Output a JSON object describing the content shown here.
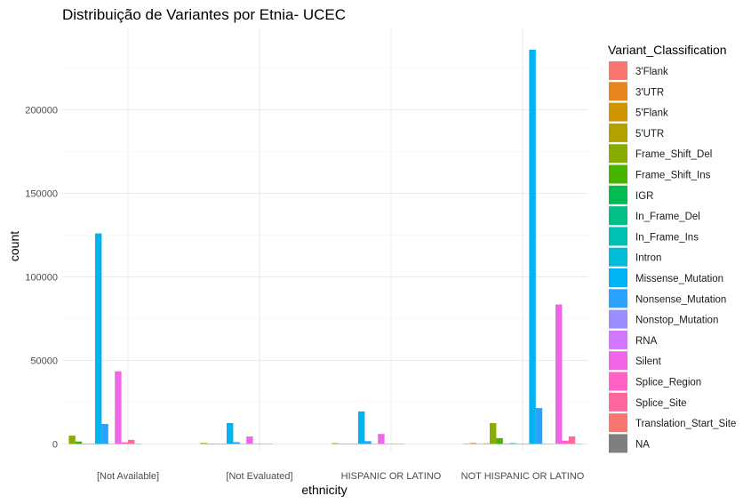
{
  "chart_data": {
    "type": "bar",
    "title": "Distribuição de Variantes por Etnia- UCEC",
    "xlabel": "ethnicity",
    "ylabel": "count",
    "ylim": [
      0,
      250000
    ],
    "yticks": [
      0,
      50000,
      100000,
      150000,
      200000
    ],
    "grid": true,
    "legend_position": "right",
    "legend_title": "Variant_Classification",
    "categories": [
      "[Not Available]",
      "[Not Evaluated]",
      "HISPANIC OR LATINO",
      "NOT HISPANIC OR LATINO"
    ],
    "series": [
      {
        "name": "3'Flank",
        "color": "#F8766D",
        "values": [
          0,
          0,
          0,
          300
        ]
      },
      {
        "name": "3'UTR",
        "color": "#E7851E",
        "values": [
          0,
          0,
          0,
          600
        ]
      },
      {
        "name": "5'Flank",
        "color": "#D09400",
        "values": [
          0,
          0,
          0,
          200
        ]
      },
      {
        "name": "5'UTR",
        "color": "#B2A100",
        "values": [
          0,
          0,
          0,
          400
        ]
      },
      {
        "name": "Frame_Shift_Del",
        "color": "#89AC00",
        "values": [
          5000,
          600,
          500,
          12500
        ]
      },
      {
        "name": "Frame_Shift_Ins",
        "color": "#45B500",
        "values": [
          1500,
          200,
          150,
          3500
        ]
      },
      {
        "name": "IGR",
        "color": "#00BC51",
        "values": [
          0,
          0,
          0,
          100
        ]
      },
      {
        "name": "In_Frame_Del",
        "color": "#00C087",
        "values": [
          200,
          50,
          40,
          500
        ]
      },
      {
        "name": "In_Frame_Ins",
        "color": "#00C0B2",
        "values": [
          50,
          10,
          10,
          100
        ]
      },
      {
        "name": "Intron",
        "color": "#00BCD6",
        "values": [
          0,
          0,
          0,
          200
        ]
      },
      {
        "name": "Missense_Mutation",
        "color": "#00B3F2",
        "values": [
          126000,
          12500,
          19500,
          236000
        ]
      },
      {
        "name": "Nonsense_Mutation",
        "color": "#29A3FF",
        "values": [
          12000,
          1100,
          1700,
          21500
        ]
      },
      {
        "name": "Nonstop_Mutation",
        "color": "#9C8DFF",
        "values": [
          100,
          20,
          20,
          200
        ]
      },
      {
        "name": "RNA",
        "color": "#D277FF",
        "values": [
          0,
          0,
          0,
          100
        ]
      },
      {
        "name": "Silent",
        "color": "#F166E8",
        "values": [
          43500,
          4500,
          6000,
          83500
        ]
      },
      {
        "name": "Splice_Region",
        "color": "#FF61C7",
        "values": [
          1000,
          100,
          150,
          2000
        ]
      },
      {
        "name": "Splice_Site",
        "color": "#FF689E",
        "values": [
          2500,
          300,
          250,
          4500
        ]
      },
      {
        "name": "Translation_Start_Site",
        "color": "#F8766D",
        "values": [
          100,
          10,
          10,
          200
        ]
      },
      {
        "name": "NA",
        "color": "#7F7F7F",
        "values": [
          0,
          0,
          0,
          0
        ]
      }
    ],
    "groups": [
      [
        "Frame_Shift_Del",
        "Frame_Shift_Ins",
        "In_Frame_Del",
        "In_Frame_Ins",
        "Missense_Mutation",
        "Nonsense_Mutation",
        "Nonstop_Mutation",
        "Silent",
        "Splice_Region",
        "Splice_Site",
        "Translation_Start_Site"
      ],
      [
        "Frame_Shift_Del",
        "Frame_Shift_Ins",
        "In_Frame_Del",
        "In_Frame_Ins",
        "Missense_Mutation",
        "Nonsense_Mutation",
        "Nonstop_Mutation",
        "Silent",
        "Splice_Region",
        "Splice_Site",
        "Translation_Start_Site"
      ],
      [
        "Frame_Shift_Del",
        "Frame_Shift_Ins",
        "In_Frame_Del",
        "In_Frame_Ins",
        "Missense_Mutation",
        "Nonsense_Mutation",
        "Nonstop_Mutation",
        "Silent",
        "Splice_Region",
        "Splice_Site",
        "Translation_Start_Site"
      ],
      [
        "3'Flank",
        "3'UTR",
        "5'Flank",
        "5'UTR",
        "Frame_Shift_Del",
        "Frame_Shift_Ins",
        "IGR",
        "In_Frame_Del",
        "In_Frame_Ins",
        "Intron",
        "Missense_Mutation",
        "Nonsense_Mutation",
        "Nonstop_Mutation",
        "RNA",
        "Silent",
        "Splice_Region",
        "Splice_Site",
        "Translation_Start_Site"
      ]
    ]
  }
}
